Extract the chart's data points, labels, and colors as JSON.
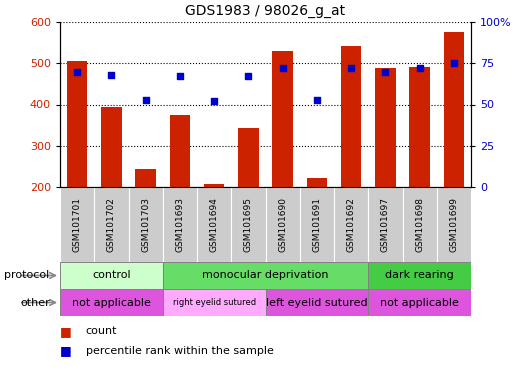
{
  "title": "GDS1983 / 98026_g_at",
  "samples": [
    "GSM101701",
    "GSM101702",
    "GSM101703",
    "GSM101693",
    "GSM101694",
    "GSM101695",
    "GSM101690",
    "GSM101691",
    "GSM101692",
    "GSM101697",
    "GSM101698",
    "GSM101699"
  ],
  "count_values": [
    505,
    393,
    244,
    375,
    207,
    343,
    530,
    222,
    543,
    488,
    490,
    575
  ],
  "percentile_values": [
    70,
    68,
    53,
    67,
    52,
    67,
    72,
    53,
    72,
    70,
    72,
    75
  ],
  "bar_color": "#cc2200",
  "dot_color": "#0000cc",
  "ylim_left": [
    200,
    600
  ],
  "ylim_right": [
    0,
    100
  ],
  "yticks_left": [
    200,
    300,
    400,
    500,
    600
  ],
  "yticks_right": [
    0,
    25,
    50,
    75,
    100
  ],
  "ytick_labels_right": [
    "0",
    "25",
    "50",
    "75",
    "100%"
  ],
  "protocol_groups": [
    {
      "label": "control",
      "start": 0,
      "end": 3,
      "color": "#ccffcc"
    },
    {
      "label": "monocular deprivation",
      "start": 3,
      "end": 9,
      "color": "#66dd66"
    },
    {
      "label": "dark rearing",
      "start": 9,
      "end": 12,
      "color": "#44cc44"
    }
  ],
  "other_groups": [
    {
      "label": "not applicable",
      "start": 0,
      "end": 3,
      "color": "#dd55dd"
    },
    {
      "label": "right eyelid sutured",
      "start": 3,
      "end": 6,
      "color": "#ffaaff"
    },
    {
      "label": "left eyelid sutured",
      "start": 6,
      "end": 9,
      "color": "#dd55dd"
    },
    {
      "label": "not applicable",
      "start": 9,
      "end": 12,
      "color": "#dd55dd"
    }
  ],
  "legend_count_color": "#cc2200",
  "legend_dot_color": "#0000cc",
  "protocol_label": "protocol",
  "other_label": "other",
  "count_label": "count",
  "percentile_label": "percentile rank within the sample",
  "background_color": "#ffffff",
  "plot_bg_color": "#ffffff",
  "xtick_bg_color": "#cccccc"
}
